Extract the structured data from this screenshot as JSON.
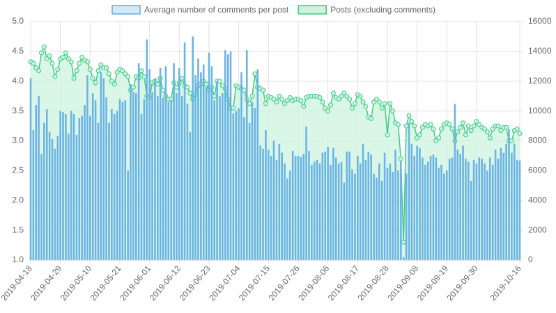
{
  "chart_data": {
    "type": "bar",
    "categories": [
      "2019-04-18",
      null,
      null,
      null,
      null,
      null,
      null,
      null,
      null,
      null,
      null,
      "2019-04-29",
      null,
      null,
      null,
      null,
      null,
      null,
      null,
      null,
      null,
      null,
      "2019-05-10",
      null,
      null,
      null,
      null,
      null,
      null,
      null,
      null,
      null,
      null,
      "2019-05-21",
      null,
      null,
      null,
      null,
      null,
      null,
      null,
      null,
      null,
      null,
      "2019-06-01",
      null,
      null,
      null,
      null,
      null,
      null,
      null,
      null,
      null,
      null,
      "2019-06-12",
      null,
      null,
      null,
      null,
      null,
      null,
      null,
      null,
      null,
      null,
      "2019-06-23",
      null,
      null,
      null,
      null,
      null,
      null,
      null,
      null,
      null,
      null,
      "2019-07-04",
      null,
      null,
      null,
      null,
      null,
      null,
      null,
      null,
      null,
      null,
      "2019-07-15",
      null,
      null,
      null,
      null,
      null,
      null,
      null,
      null,
      null,
      null,
      "2019-07-26",
      null,
      null,
      null,
      null,
      null,
      null,
      null,
      null,
      null,
      null,
      "2019-08-06",
      null,
      null,
      null,
      null,
      null,
      null,
      null,
      null,
      null,
      null,
      "2019-08-17",
      null,
      null,
      null,
      null,
      null,
      null,
      null,
      null,
      null,
      null,
      "2019-08-28",
      null,
      null,
      null,
      null,
      null,
      null,
      null,
      null,
      null,
      null,
      "2019-09-08",
      null,
      null,
      null,
      null,
      null,
      null,
      null,
      null,
      null,
      null,
      "2019-09-19",
      null,
      null,
      null,
      null,
      null,
      null,
      null,
      null,
      null,
      null,
      "2019-09-30",
      null,
      null,
      null,
      null,
      null,
      null,
      null,
      null,
      null,
      null,
      null,
      null,
      null,
      null,
      null,
      "2019-10-16"
    ],
    "series": [
      {
        "name": "Average number of comments per post",
        "type": "bar",
        "color": "#6cb4e6",
        "legend_fill": "#d3e9f8",
        "legend_stroke": "#5aaee6",
        "values": [
          4.05,
          3.18,
          3.6,
          3.75,
          2.78,
          3.3,
          3.53,
          3.15,
          3.03,
          2.87,
          3.08,
          3.5,
          3.48,
          3.45,
          3.12,
          3.5,
          3.45,
          3.1,
          3.38,
          3.42,
          3.6,
          4.1,
          3.42,
          3.8,
          3.68,
          3.3,
          4.15,
          4.05,
          3.73,
          3.3,
          3.53,
          3.45,
          3.5,
          3.7,
          3.65,
          3.68,
          2.5,
          3.95,
          3.82,
          3.8,
          4.3,
          3.45,
          3.7,
          4.7,
          4.2,
          3.82,
          4.05,
          3.75,
          4.22,
          3.72,
          4.25,
          3.65,
          3.68,
          4.3,
          3.8,
          4.22,
          3.75,
          4.65,
          3.62,
          3.15,
          4.75,
          4.1,
          4.38,
          4.15,
          4.28,
          3.9,
          4.48,
          4.25,
          3.68,
          4.0,
          3.75,
          3.8,
          4.52,
          4.45,
          4.5,
          3.46,
          3.5,
          3.55,
          4.15,
          3.4,
          4.52,
          3.3,
          3.65,
          3.55,
          4.2,
          2.92,
          2.87,
          3.18,
          2.85,
          2.75,
          3.0,
          2.68,
          2.95,
          2.8,
          2.62,
          2.37,
          2.5,
          2.83,
          2.75,
          2.75,
          2.73,
          2.78,
          3.24,
          2.83,
          2.6,
          2.65,
          2.68,
          2.62,
          2.8,
          2.82,
          2.9,
          2.6,
          2.88,
          2.72,
          2.62,
          2.65,
          2.3,
          2.82,
          2.82,
          2.52,
          2.45,
          2.75,
          2.62,
          2.95,
          2.68,
          2.82,
          2.77,
          2.45,
          2.38,
          2.62,
          2.33,
          2.8,
          2.55,
          2.62,
          2.48,
          2.85,
          2.5,
          2.65,
          1.05,
          2.45,
          3.3,
          2.95,
          2.75,
          2.92,
          2.88,
          2.72,
          2.6,
          2.65,
          2.75,
          2.77,
          2.72,
          2.55,
          2.6,
          2.45,
          2.5,
          2.7,
          2.72,
          3.62,
          2.85,
          2.78,
          2.92,
          2.7,
          2.65,
          2.33,
          2.68,
          2.62,
          2.72,
          2.7,
          2.62,
          2.5,
          2.72,
          2.6,
          2.85,
          2.7,
          2.88,
          2.8,
          2.95,
          3.2,
          2.8,
          2.95,
          2.68,
          2.67
        ]
      },
      {
        "name": "Posts (excluding comments)",
        "type": "line",
        "axis": "y2",
        "color": "#3dcc85",
        "fill": "#cdf3df",
        "legend_fill": "#cdf3df",
        "legend_stroke": "#3dcc85",
        "values": [
          13300,
          13200,
          12900,
          12700,
          13900,
          14300,
          13500,
          13700,
          13200,
          12300,
          12800,
          13500,
          13600,
          13900,
          13500,
          13300,
          12200,
          12700,
          13200,
          13600,
          13400,
          13300,
          12800,
          12200,
          11900,
          12700,
          13100,
          12900,
          12900,
          12500,
          12000,
          11800,
          12600,
          12800,
          12700,
          12500,
          12300,
          11400,
          11600,
          12300,
          12200,
          12700,
          12300,
          11000,
          10900,
          11900,
          12000,
          11800,
          12200,
          11400,
          11000,
          10800,
          10800,
          11900,
          11600,
          11900,
          12200,
          11700,
          11600,
          11200,
          10800,
          11100,
          11700,
          11800,
          12000,
          11800,
          11400,
          11600,
          11000,
          12000,
          12000,
          11700,
          11500,
          10800,
          10200,
          10200,
          11700,
          11600,
          11500,
          11400,
          10800,
          10500,
          11000,
          12500,
          11600,
          11500,
          11400,
          10500,
          11000,
          10900,
          10800,
          10600,
          11000,
          10800,
          10500,
          10700,
          10900,
          10700,
          10800,
          10800,
          10700,
          10300,
          10900,
          11000,
          11000,
          11000,
          11000,
          10900,
          10600,
          10200,
          10000,
          10400,
          11200,
          10900,
          10800,
          11000,
          11200,
          11000,
          10800,
          10200,
          10500,
          11100,
          11000,
          10600,
          10300,
          9600,
          9500,
          10600,
          10800,
          10600,
          10200,
          10500,
          8400,
          10500,
          10000,
          9200,
          9100,
          6800,
          1200,
          9000,
          9700,
          9300,
          9000,
          8200,
          8400,
          8900,
          9100,
          9000,
          9100,
          8800,
          8000,
          8200,
          8800,
          9100,
          9200,
          9100,
          8800,
          8000,
          8600,
          8900,
          9200,
          8400,
          9000,
          8700,
          9000,
          9300,
          9100,
          8900,
          8800,
          8600,
          8200,
          8800,
          9000,
          9000,
          8700,
          8900,
          8900,
          8000,
          8000,
          8700,
          8800,
          8500
        ]
      }
    ],
    "ylim": [
      1,
      5
    ],
    "yticks": [
      {
        "value": 1,
        "label": "1.0"
      },
      {
        "value": 1.5,
        "label": "1.5"
      },
      {
        "value": 2,
        "label": "2.0"
      },
      {
        "value": 2.5,
        "label": "2.5"
      },
      {
        "value": 3,
        "label": "3.0"
      },
      {
        "value": 3.5,
        "label": "3.5"
      },
      {
        "value": 4,
        "label": "4.0"
      },
      {
        "value": 4.5,
        "label": "4.5"
      },
      {
        "value": 5,
        "label": "5.0"
      }
    ],
    "y2lim": [
      0,
      16000
    ],
    "y2ticks": [
      0,
      2000,
      4000,
      6000,
      8000,
      10000,
      12000,
      14000,
      16000
    ],
    "grid": true,
    "legend": "top"
  }
}
